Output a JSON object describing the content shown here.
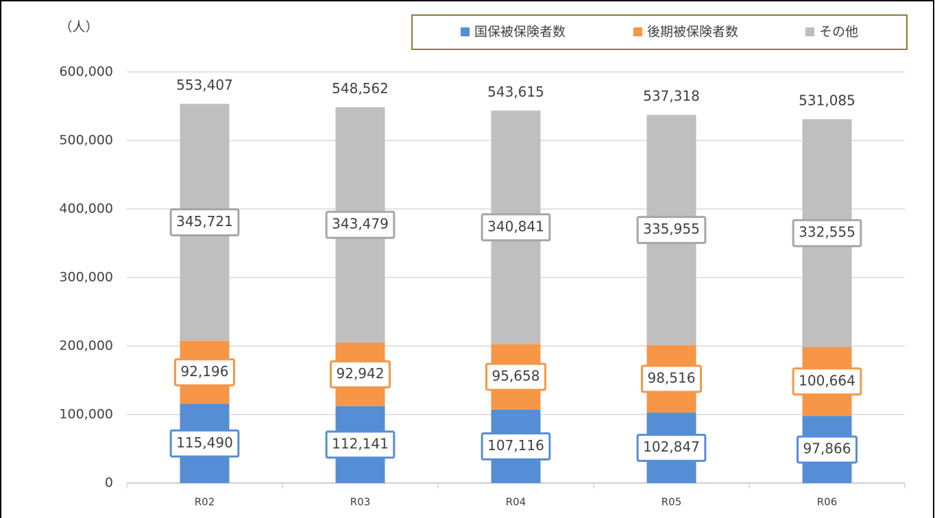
{
  "chart_data": {
    "type": "stacked_bar",
    "y_unit_label": "（人）",
    "categories": [
      "R02",
      "R03",
      "R04",
      "R05",
      "R06"
    ],
    "series": [
      {
        "name": "国保被保険者数",
        "color": "#558ed5",
        "values": [
          115490,
          112141,
          107116,
          102847,
          97866
        ],
        "value_labels": [
          "115,490",
          "112,141",
          "107,116",
          "102,847",
          "97,866"
        ]
      },
      {
        "name": "後期被保険者数",
        "color": "#f79646",
        "values": [
          92196,
          92942,
          95658,
          98516,
          100664
        ],
        "value_labels": [
          "92,196",
          "92,942",
          "95,658",
          "98,516",
          "100,664"
        ]
      },
      {
        "name": "その他",
        "color": "#bfbfbf",
        "values": [
          345721,
          343479,
          340841,
          335955,
          332555
        ],
        "value_labels": [
          "345,721",
          "343,479",
          "340,841",
          "335,955",
          "332,555"
        ]
      }
    ],
    "totals": [
      553407,
      548562,
      543615,
      537318,
      531085
    ],
    "total_labels": [
      "553,407",
      "548,562",
      "543,615",
      "537,318",
      "531,085"
    ],
    "ylim": [
      0,
      600000
    ],
    "yticks": [
      0,
      {
        "value": 100000,
        "label": "100,000"
      },
      {
        "value": 200000,
        "label": "200,000"
      },
      {
        "value": 300000,
        "label": "300,000"
      },
      {
        "value": 400000,
        "label": "400,000"
      },
      {
        "value": 500000,
        "label": "500,000"
      },
      {
        "value": 600000,
        "label": "600,000"
      }
    ],
    "grid": true,
    "legend": "top-right"
  }
}
